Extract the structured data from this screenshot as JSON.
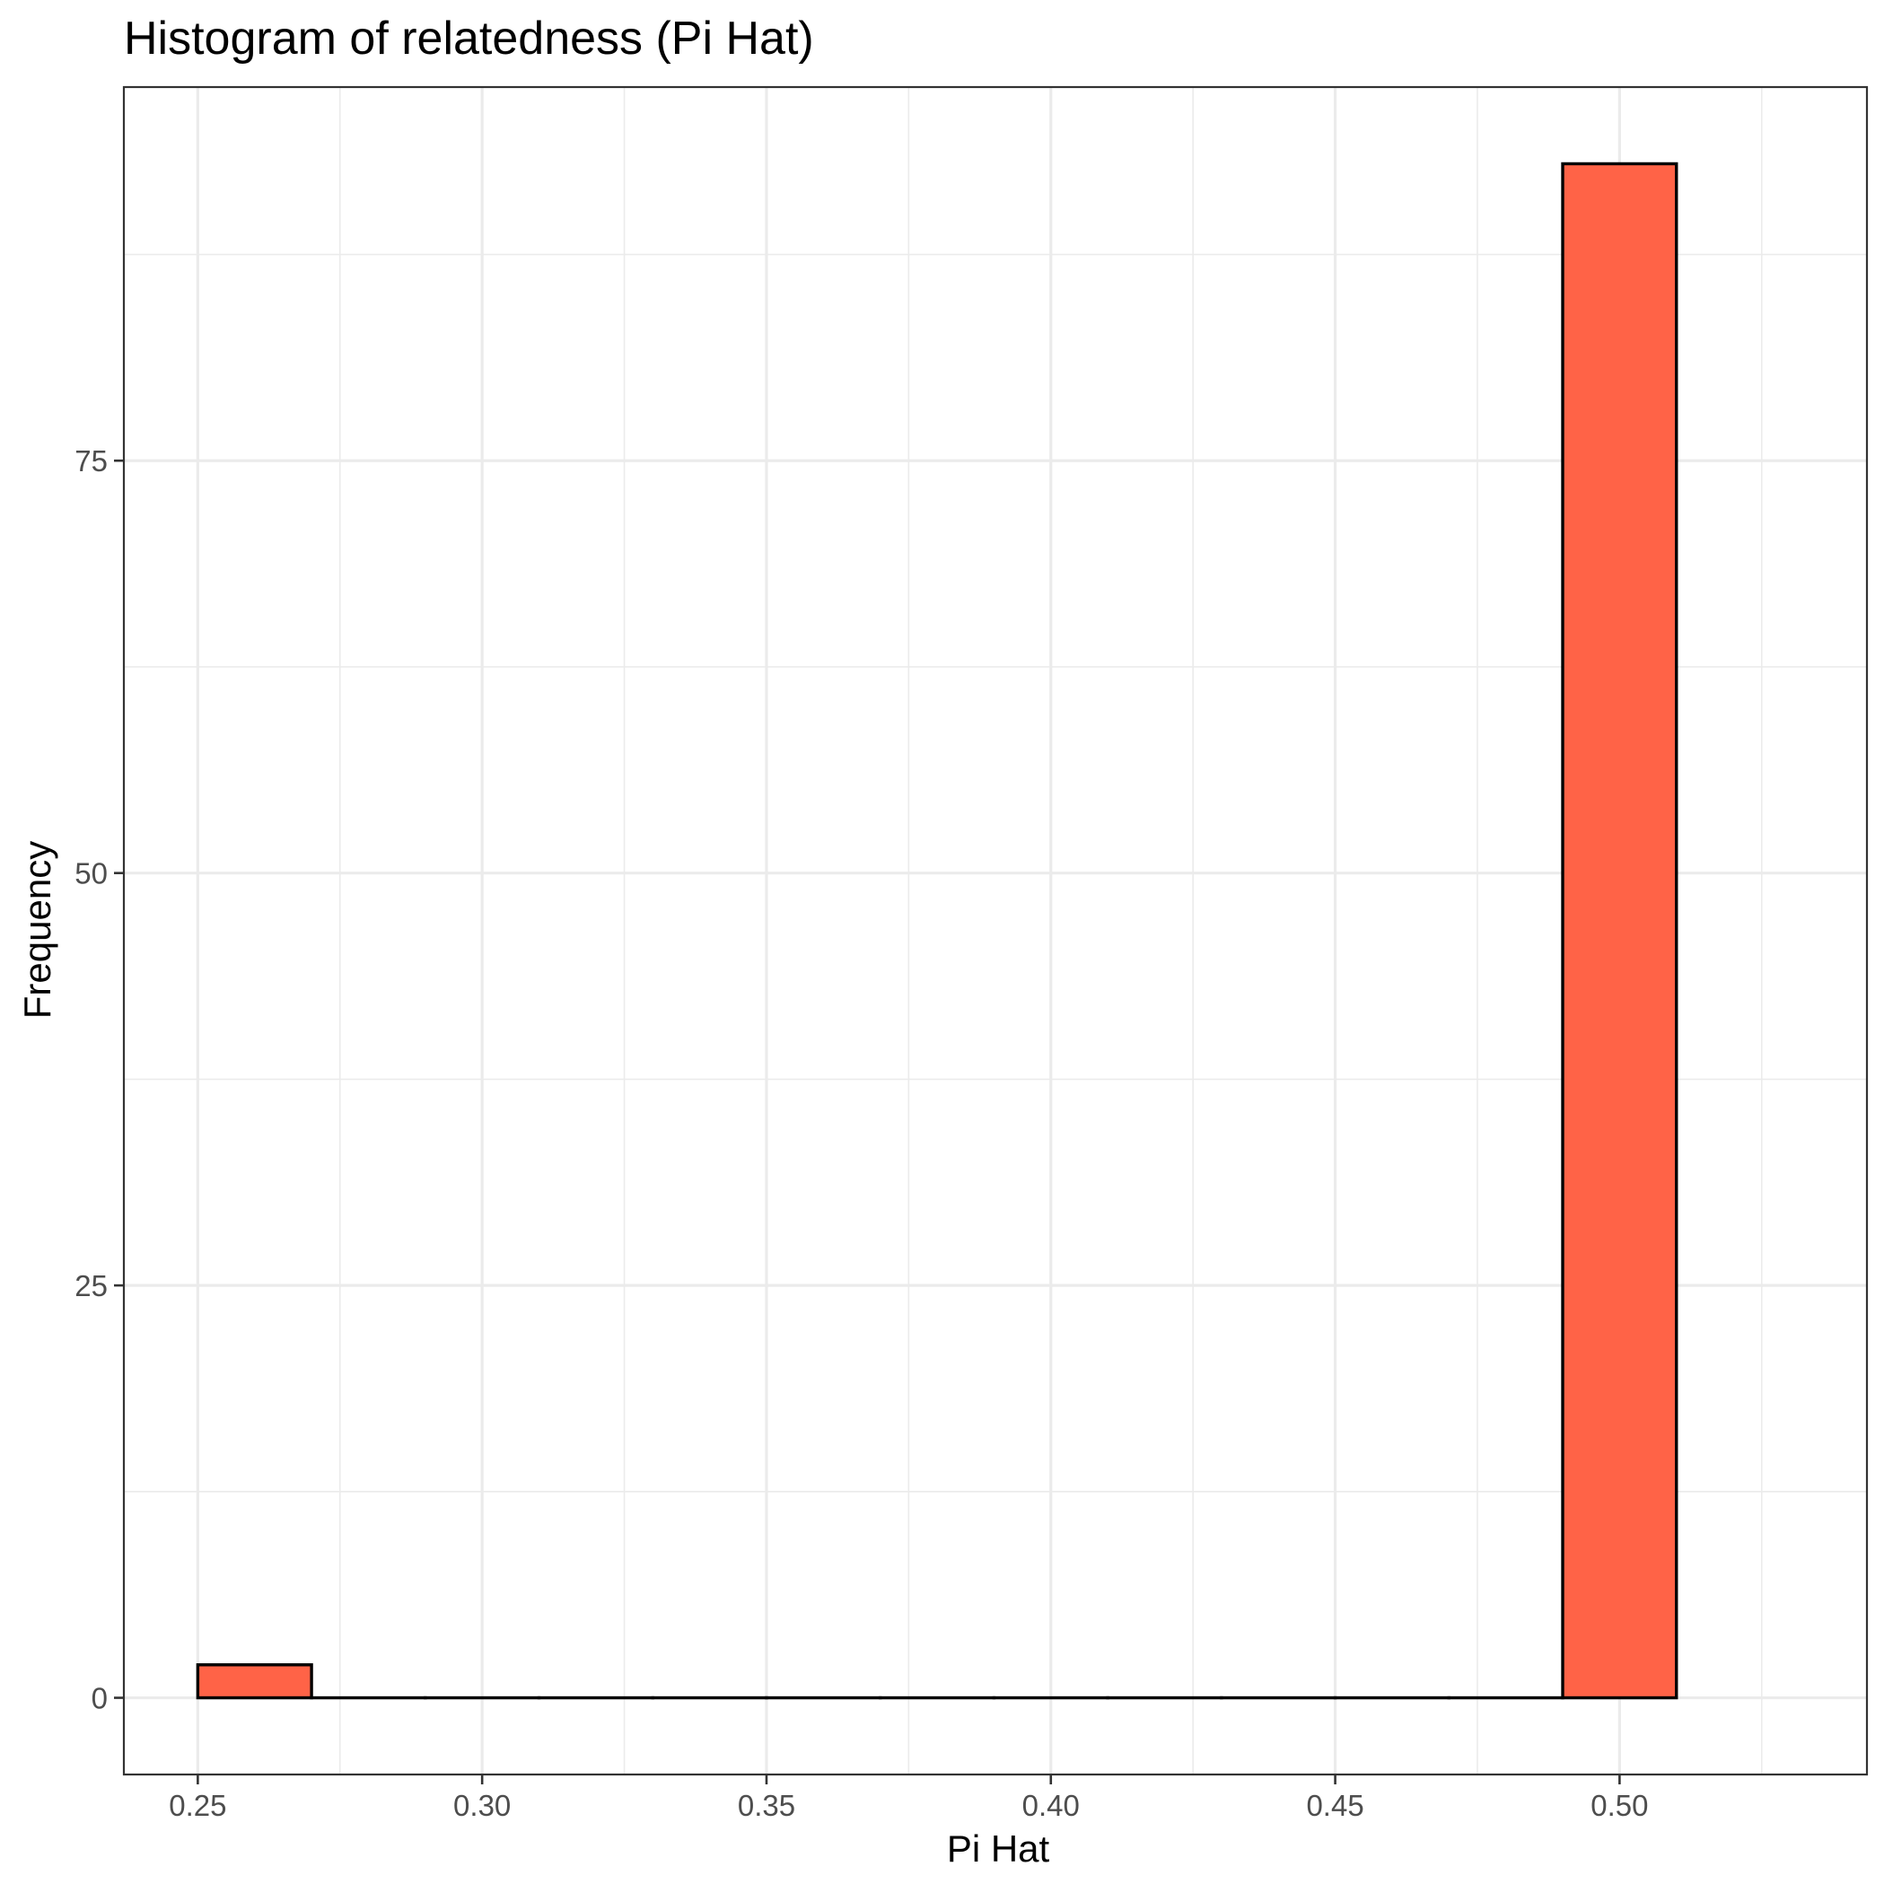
{
  "chart_data": {
    "type": "bar",
    "title": "Histogram of relatedness (Pi Hat)",
    "xlabel": "Pi Hat",
    "ylabel": "Frequency",
    "bin_width": 0.02,
    "bins": [
      {
        "x_start": 0.25,
        "x_end": 0.27,
        "count": 2
      },
      {
        "x_start": 0.27,
        "x_end": 0.29,
        "count": 0
      },
      {
        "x_start": 0.29,
        "x_end": 0.31,
        "count": 0
      },
      {
        "x_start": 0.31,
        "x_end": 0.33,
        "count": 0
      },
      {
        "x_start": 0.33,
        "x_end": 0.35,
        "count": 0
      },
      {
        "x_start": 0.35,
        "x_end": 0.37,
        "count": 0
      },
      {
        "x_start": 0.37,
        "x_end": 0.39,
        "count": 0
      },
      {
        "x_start": 0.39,
        "x_end": 0.41,
        "count": 0
      },
      {
        "x_start": 0.41,
        "x_end": 0.43,
        "count": 0
      },
      {
        "x_start": 0.43,
        "x_end": 0.45,
        "count": 0
      },
      {
        "x_start": 0.45,
        "x_end": 0.47,
        "count": 0
      },
      {
        "x_start": 0.47,
        "x_end": 0.49,
        "count": 0
      },
      {
        "x_start": 0.49,
        "x_end": 0.51,
        "count": 93
      }
    ],
    "xlim": [
      0.237,
      0.5435
    ],
    "ylim": [
      -4.65,
      97.65
    ],
    "x_major_ticks": [
      0.25,
      0.3,
      0.35,
      0.4,
      0.45,
      0.5
    ],
    "x_tick_labels": [
      "0.25",
      "0.30",
      "0.35",
      "0.40",
      "0.45",
      "0.50"
    ],
    "x_minor_ticks": [
      0.275,
      0.325,
      0.375,
      0.425,
      0.475,
      0.525
    ],
    "y_major_ticks": [
      0,
      25,
      50,
      75
    ],
    "y_tick_labels": [
      "0",
      "25",
      "50",
      "75"
    ],
    "y_minor_ticks": [
      12.5,
      37.5,
      62.5,
      87.5
    ],
    "grid": true,
    "legend": "none",
    "fill_color": "#ff6347",
    "outline_color": "#000000"
  }
}
